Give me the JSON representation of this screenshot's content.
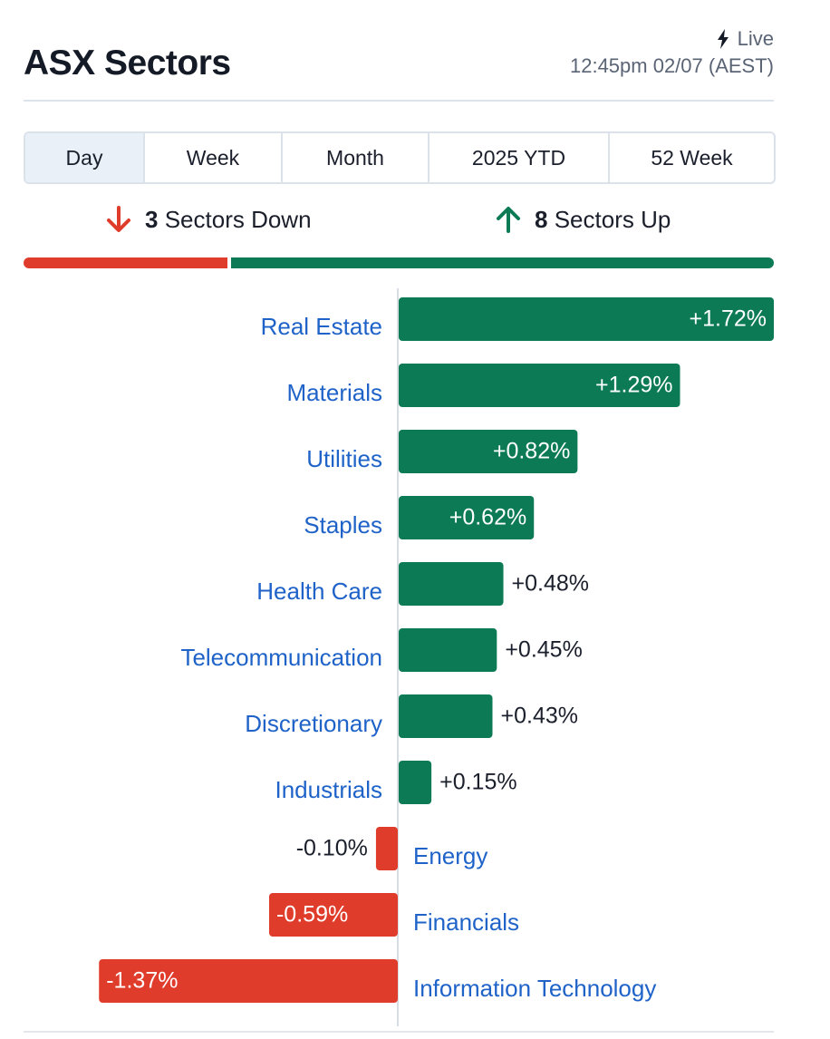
{
  "header": {
    "title": "ASX Sectors",
    "live_label": "Live",
    "timestamp": "12:45pm 02/07 (AEST)"
  },
  "tabs": [
    {
      "label": "Day",
      "active": true
    },
    {
      "label": "Week",
      "active": false
    },
    {
      "label": "Month",
      "active": false
    },
    {
      "label": "2025 YTD",
      "active": false
    },
    {
      "label": "52 Week",
      "active": false
    }
  ],
  "summary": {
    "down_count": "3",
    "down_label": "Sectors Down",
    "up_count": "8",
    "up_label": "Sectors Up"
  },
  "colors": {
    "up": "#0c7b55",
    "down": "#e03c2b",
    "link": "#1f63c9",
    "axis": "#d8dde4"
  },
  "icons": {
    "live": "lightning-bolt-icon",
    "down": "arrow-down-icon",
    "up": "arrow-up-icon"
  },
  "chart_data": {
    "type": "bar",
    "orientation": "horizontal",
    "categories": [
      "Real Estate",
      "Materials",
      "Utilities",
      "Staples",
      "Health Care",
      "Telecommunication",
      "Discretionary",
      "Industrials",
      "Energy",
      "Financials",
      "Information Technology"
    ],
    "values": [
      1.72,
      1.29,
      0.82,
      0.62,
      0.48,
      0.45,
      0.43,
      0.15,
      -0.1,
      -0.59,
      -1.37
    ],
    "labels": [
      "+1.72%",
      "+1.29%",
      "+0.82%",
      "+0.62%",
      "+0.48%",
      "+0.45%",
      "+0.43%",
      "+0.15%",
      "-0.10%",
      "-0.59%",
      "-1.37%"
    ],
    "unit": "%",
    "title": "",
    "xlabel": "",
    "ylabel": "",
    "grid": false,
    "legend": "none"
  }
}
